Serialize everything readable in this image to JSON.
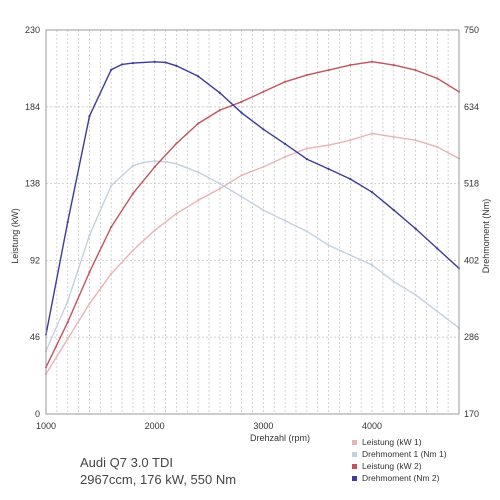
{
  "caption": {
    "line1": "Audi Q7 3.0 TDI",
    "line2": "2967ccm, 176 kW, 550 Nm"
  },
  "chart_data": {
    "type": "line",
    "xlabel": "Drehzahl (rpm)",
    "ylabel": "Leistung (kW)",
    "ylabel_right": "Drehmoment (Nm)",
    "xlim": [
      1000,
      4800
    ],
    "ylim": [
      0,
      230
    ],
    "ylim_right": [
      170,
      750
    ],
    "x_ticks": [
      1000,
      2000,
      3000,
      4000
    ],
    "y_ticks": [
      0,
      46,
      92,
      138,
      184,
      230
    ],
    "y_ticks_right": [
      170,
      286,
      402,
      518,
      634,
      750
    ],
    "grid": true,
    "legend_position": "bottom-right",
    "colors": {
      "leistung1": "#e8b4b4",
      "drehmoment1": "#c4cfe0",
      "leistung2": "#c0545e",
      "drehmoment2": "#3c3c9a"
    },
    "series": [
      {
        "name": "Leistung (kW 1)",
        "axis": "left",
        "color": "#e8b4b4",
        "x": [
          1000,
          1200,
          1400,
          1600,
          1800,
          2000,
          2200,
          2400,
          2600,
          2800,
          3000,
          3200,
          3400,
          3600,
          3800,
          4000,
          4200,
          4400,
          4600,
          4800
        ],
        "y": [
          24,
          45,
          66,
          84,
          98,
          110,
          120,
          128,
          135,
          143,
          148,
          154,
          159,
          161,
          164,
          168,
          166,
          164,
          160,
          153
        ]
      },
      {
        "name": "Drehmoment 1 (Nm 1)",
        "axis": "right",
        "color": "#c4cfe0",
        "x": [
          1000,
          1200,
          1400,
          1600,
          1800,
          1900,
          2000,
          2100,
          2200,
          2400,
          2600,
          2800,
          3000,
          3200,
          3400,
          3600,
          3800,
          4000,
          4200,
          4400,
          4600,
          4800
        ],
        "y": [
          265,
          340,
          440,
          515,
          545,
          550,
          552,
          551,
          548,
          535,
          518,
          498,
          478,
          462,
          446,
          425,
          410,
          395,
          370,
          350,
          325,
          300
        ]
      },
      {
        "name": "Leistung (kW 2)",
        "axis": "left",
        "color": "#c0545e",
        "x": [
          1000,
          1200,
          1400,
          1600,
          1800,
          2000,
          2200,
          2400,
          2600,
          2800,
          3000,
          3200,
          3400,
          3600,
          3800,
          4000,
          4200,
          4400,
          4600,
          4800
        ],
        "y": [
          28,
          55,
          85,
          112,
          132,
          148,
          162,
          174,
          182,
          187,
          193,
          199,
          203,
          206,
          209,
          211,
          209,
          206,
          201,
          193
        ]
      },
      {
        "name": "Drehmoment (Nm 2)",
        "axis": "right",
        "color": "#3c3c9a",
        "x": [
          1000,
          1200,
          1400,
          1600,
          1700,
          1800,
          2000,
          2100,
          2200,
          2400,
          2600,
          2800,
          3000,
          3200,
          3400,
          3600,
          3800,
          4000,
          4200,
          4400,
          4600,
          4800
        ],
        "y": [
          290,
          460,
          620,
          690,
          698,
          700,
          702,
          701,
          696,
          680,
          655,
          625,
          600,
          578,
          555,
          540,
          525,
          505,
          478,
          450,
          420,
          390
        ]
      }
    ]
  }
}
